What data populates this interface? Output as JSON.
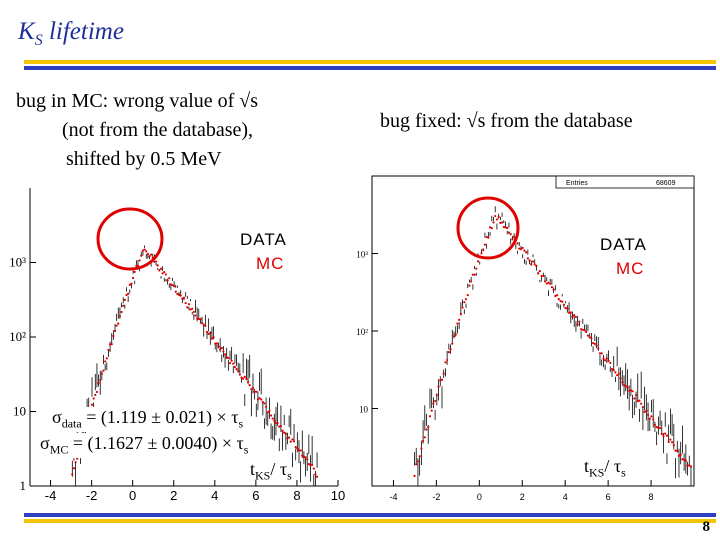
{
  "slide": {
    "title_main": "K",
    "title_sub": "S",
    "title_rest": " lifetime",
    "bar_color_yellow": "#f5c400",
    "bar_color_blue": "#2f3fbf",
    "title_color": "#1f2f9a",
    "page_number": "8"
  },
  "left_panel": {
    "caption_line1": "bug in MC: wrong value of √s",
    "caption_line2": "(not from the database),",
    "caption_line3": "shifted by 0.5 MeV",
    "legend_data": "DATA",
    "legend_mc": "MC",
    "sigma_data_sym": "σ",
    "sigma_data_sub": "data",
    "sigma_data_rest": " = (1.119 ± 0.021) × τ",
    "sigma_data_tau_sub": "s",
    "sigma_mc_sym": "σ",
    "sigma_mc_sub": "MC",
    "sigma_mc_rest": " = (1.1627 ± 0.0040) × τ",
    "sigma_mc_tau_sub": "s",
    "xlabel_main": "t",
    "xlabel_sub": "KS",
    "xlabel_rest": "/ τ",
    "xlabel_tau_sub": "s"
  },
  "right_panel": {
    "caption_line1": "bug fixed:  √s from the database",
    "legend_data": "DATA",
    "legend_mc": "MC",
    "stats_label": "Entries",
    "stats_value": "68609",
    "xlabel_main": "t",
    "xlabel_sub": "KS",
    "xlabel_rest": "/ τ",
    "xlabel_tau_sub": "s"
  },
  "chart_data": [
    {
      "type": "scatter",
      "title": "",
      "xlabel": "",
      "ylabel": "",
      "log_y": true,
      "xlim": [
        -5,
        10
      ],
      "ylim": [
        1,
        10000
      ],
      "x_ticks": [
        "-4",
        "-2",
        "0",
        "2",
        "4",
        "6",
        "8",
        "10"
      ],
      "y_ticks": [
        "1",
        "10",
        "10²",
        "10³"
      ],
      "peak_x": 0.6,
      "peak_y": 1500,
      "highlight": "red circle around the peak",
      "series": [
        {
          "name": "DATA",
          "color": "#000000"
        },
        {
          "name": "MC",
          "color": "#e00000"
        }
      ]
    },
    {
      "type": "scatter",
      "title": "",
      "xlabel": "",
      "ylabel": "",
      "log_y": true,
      "xlim": [
        -5,
        10
      ],
      "ylim": [
        1,
        10000
      ],
      "x_ticks": [
        "-4",
        "-2",
        "0",
        "2",
        "4",
        "6",
        "8"
      ],
      "y_ticks": [
        "10",
        "10²",
        "10³"
      ],
      "peak_x": 0.8,
      "peak_y": 3000,
      "highlight": "red circle around the peak",
      "series": [
        {
          "name": "DATA",
          "color": "#000000"
        },
        {
          "name": "MC",
          "color": "#e00000"
        }
      ]
    }
  ]
}
